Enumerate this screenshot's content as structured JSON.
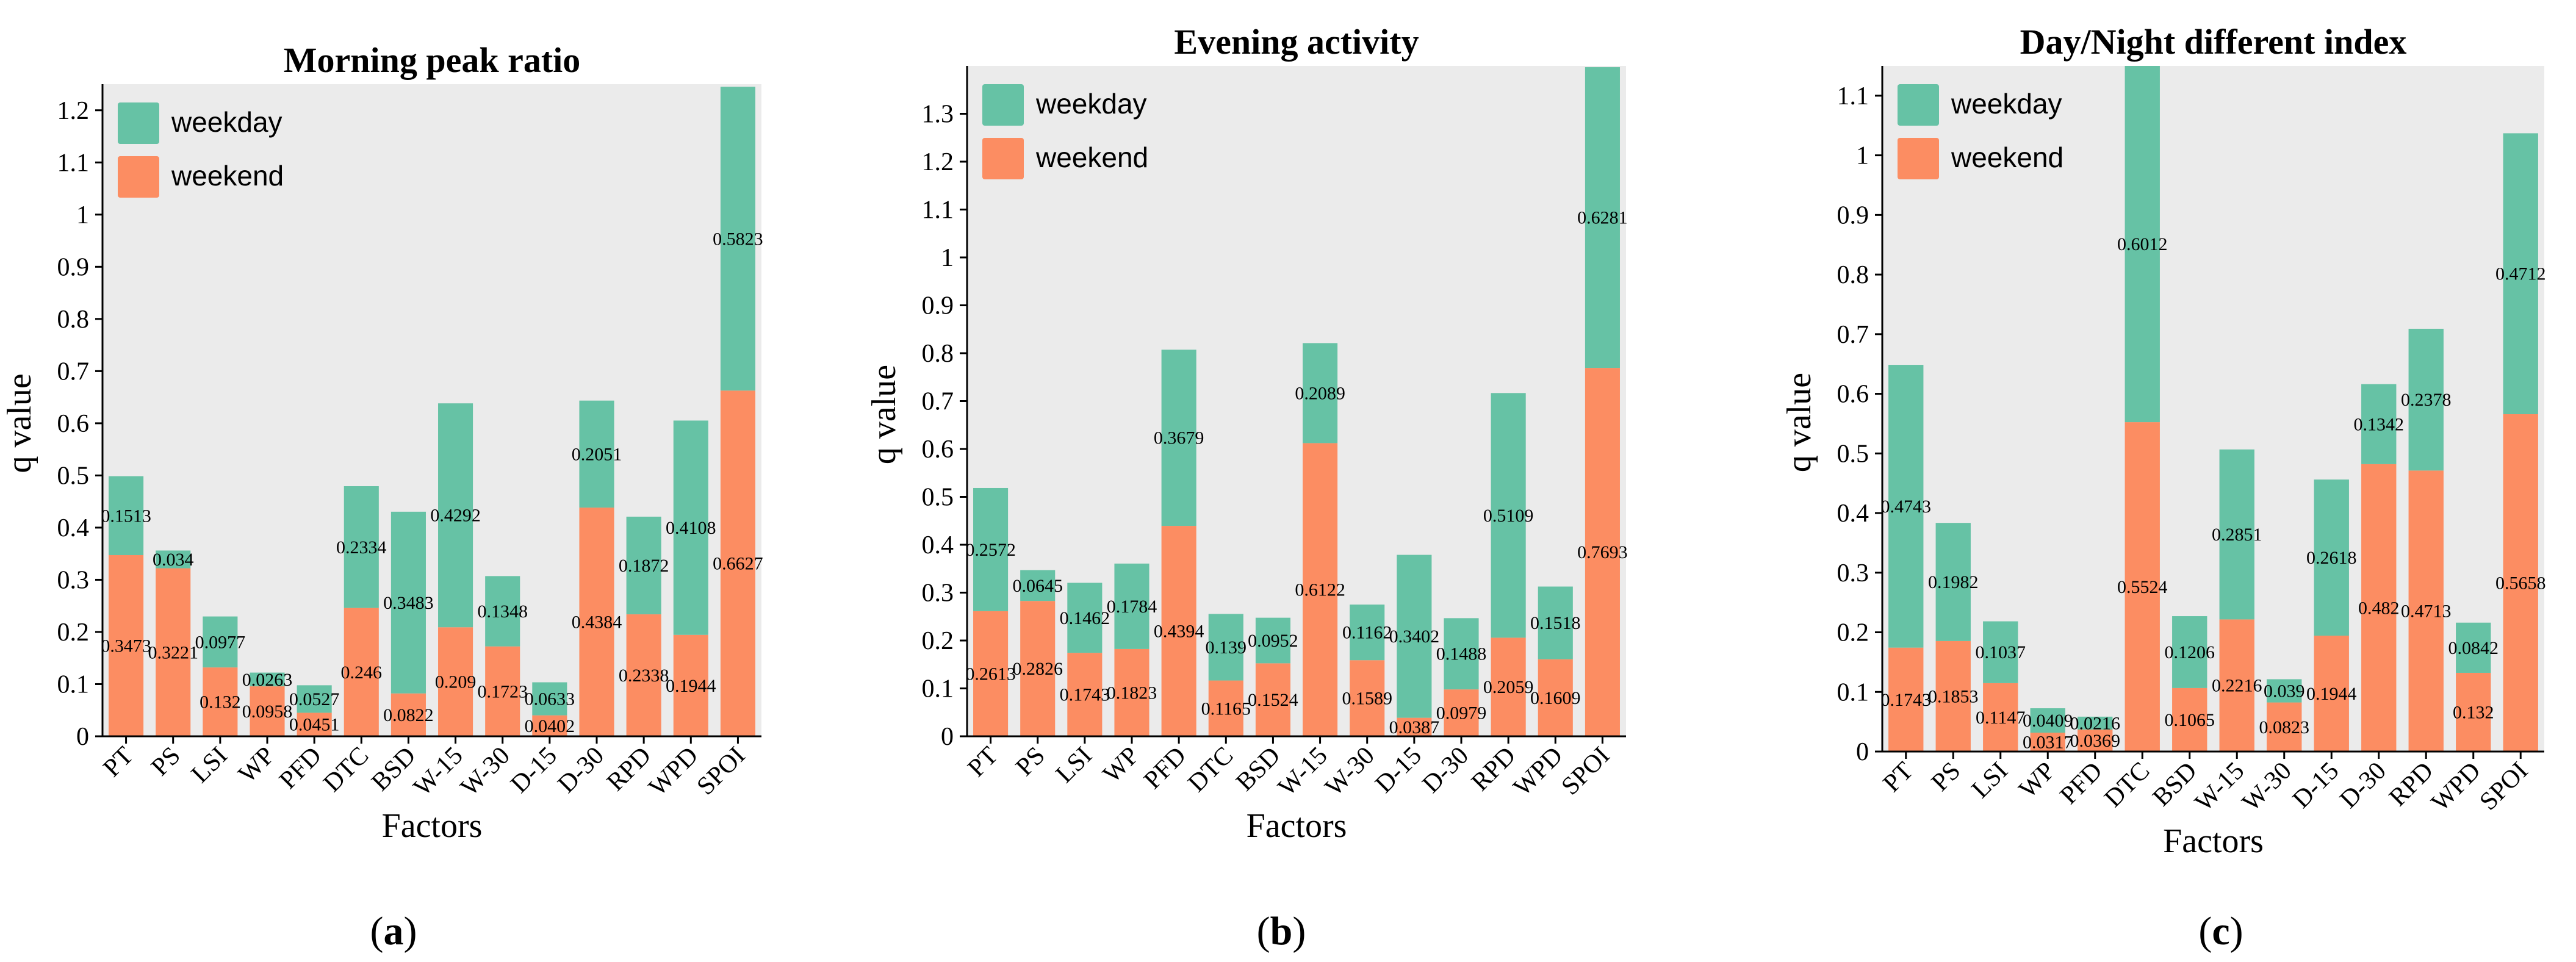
{
  "colors": {
    "weekday": "#66c2a5",
    "weekend": "#fc8d62",
    "background": "#ebebeb"
  },
  "chart_data": [
    {
      "type": "bar",
      "stacked": true,
      "title": "Morning peak ratio",
      "xlabel": "Factors",
      "ylabel": "q value",
      "panel_label": "a",
      "ylim": [
        0,
        1.25
      ],
      "yticks": [
        0,
        0.1,
        0.2,
        0.3,
        0.4,
        0.5,
        0.6,
        0.7,
        0.8,
        0.9,
        1,
        1.1,
        1.2
      ],
      "ytick_labels": [
        "0",
        "0.1",
        "0.2",
        "0.3",
        "0.4",
        "0.5",
        "0.6",
        "0.7",
        "0.8",
        "0.9",
        "1",
        "1.1",
        "1.2"
      ],
      "grid": false,
      "legend": "top-left",
      "categories": [
        "PT",
        "PS",
        "LSI",
        "WP",
        "PFD",
        "DTC",
        "BSD",
        "W-15",
        "W-30",
        "D-15",
        "D-30",
        "RPD",
        "WPD",
        "SPOI"
      ],
      "series": [
        {
          "name": "weekend",
          "values": [
            0.3473,
            0.3221,
            0.132,
            0.0958,
            0.0451,
            0.246,
            0.0822,
            0.209,
            0.1723,
            0.0402,
            0.4384,
            0.2338,
            0.1944,
            0.6627
          ],
          "labels": [
            "0.3473",
            "0.3221",
            "0.132",
            "0.0958",
            "0.0451",
            "0.246",
            "0.0822",
            "0.209",
            "0.1723",
            "0.0402",
            "0.4384",
            "0.2338",
            "0.1944",
            "0.6627"
          ]
        },
        {
          "name": "weekday",
          "values": [
            0.1513,
            0.034,
            0.0977,
            0.0263,
            0.0527,
            0.2334,
            0.3483,
            0.4292,
            0.1348,
            0.0633,
            0.2051,
            0.1872,
            0.4108,
            0.5823
          ],
          "labels": [
            "0.1513",
            "0.034",
            "0.0977",
            "0.0263",
            "0.0527",
            "0.2334",
            "0.3483",
            "0.4292",
            "0.1348",
            "0.0633",
            "0.2051",
            "0.1872",
            "0.4108",
            "0.5823"
          ]
        }
      ]
    },
    {
      "type": "bar",
      "stacked": true,
      "title": "Evening activity",
      "xlabel": "Factors",
      "ylabel": "q value",
      "panel_label": "b",
      "ylim": [
        0,
        1.4
      ],
      "yticks": [
        0,
        0.1,
        0.2,
        0.3,
        0.4,
        0.5,
        0.6,
        0.7,
        0.8,
        0.9,
        1,
        1.1,
        1.2,
        1.3
      ],
      "ytick_labels": [
        "0",
        "0.1",
        "0.2",
        "0.3",
        "0.4",
        "0.5",
        "0.6",
        "0.7",
        "0.8",
        "0.9",
        "1",
        "1.1",
        "1.2",
        "1.3"
      ],
      "grid": false,
      "legend": "top-left",
      "categories": [
        "PT",
        "PS",
        "LSI",
        "WP",
        "PFD",
        "DTC",
        "BSD",
        "W-15",
        "W-30",
        "D-15",
        "D-30",
        "RPD",
        "WPD",
        "SPOI"
      ],
      "series": [
        {
          "name": "weekend",
          "values": [
            0.2613,
            0.2826,
            0.1743,
            0.1823,
            0.4394,
            0.1165,
            0.1524,
            0.6122,
            0.1589,
            0.0387,
            0.0979,
            0.2059,
            0.1609,
            0.7693
          ],
          "labels": [
            "0.2613",
            "0.2826",
            "0.1743",
            "0.1823",
            "0.4394",
            "0.1165",
            "0.1524",
            "0.6122",
            "0.1589",
            "0.0387",
            "0.0979",
            "0.2059",
            "0.1609",
            "0.7693"
          ]
        },
        {
          "name": "weekday",
          "values": [
            0.2572,
            0.0645,
            0.1462,
            0.1784,
            0.3679,
            0.139,
            0.0952,
            0.2089,
            0.1162,
            0.3402,
            0.1488,
            0.5109,
            0.1518,
            0.6281
          ],
          "labels": [
            "0.2572",
            "0.0645",
            "0.1462",
            "0.1784",
            "0.3679",
            "0.139",
            "0.0952",
            "0.2089",
            "0.1162",
            "0.3402",
            "0.1488",
            "0.5109",
            "0.1518",
            "0.6281"
          ]
        }
      ]
    },
    {
      "type": "bar",
      "stacked": true,
      "title": "Day/Night different index",
      "xlabel": "Factors",
      "ylabel": "q value",
      "panel_label": "c",
      "ylim": [
        0,
        1.15
      ],
      "yticks": [
        0,
        0.1,
        0.2,
        0.3,
        0.4,
        0.5,
        0.6,
        0.7,
        0.8,
        0.9,
        1,
        1.1
      ],
      "ytick_labels": [
        "0",
        "0.1",
        "0.2",
        "0.3",
        "0.4",
        "0.5",
        "0.6",
        "0.7",
        "0.8",
        "0.9",
        "1",
        "1.1"
      ],
      "grid": false,
      "legend": "top-left",
      "categories": [
        "PT",
        "PS",
        "LSI",
        "WP",
        "PFD",
        "DTC",
        "BSD",
        "W-15",
        "W-30",
        "D-15",
        "D-30",
        "RPD",
        "WPD",
        "SPOI"
      ],
      "series": [
        {
          "name": "weekend",
          "values": [
            0.1743,
            0.1853,
            0.1147,
            0.0317,
            0.0369,
            0.5524,
            0.1065,
            0.2216,
            0.0823,
            0.1944,
            0.482,
            0.4713,
            0.132,
            0.5658
          ],
          "labels": [
            "0.1743",
            "0.1853",
            "0.1147",
            "0.0317",
            "0.0369",
            "0.5524",
            "0.1065",
            "0.2216",
            "0.0823",
            "0.1944",
            "0.482",
            "0.4713",
            "0.132",
            "0.5658"
          ]
        },
        {
          "name": "weekday",
          "values": [
            0.4743,
            0.1982,
            0.1037,
            0.0409,
            0.0216,
            0.6012,
            0.1206,
            0.2851,
            0.039,
            0.2618,
            0.1342,
            0.2378,
            0.0842,
            0.4712
          ],
          "labels": [
            "0.4743",
            "0.1982",
            "0.1037",
            "0.0409",
            "0.0216",
            "0.6012",
            "0.1206",
            "0.2851",
            "0.039",
            "0.2618",
            "0.1342",
            "0.2378",
            "0.0842",
            "0.4712"
          ]
        }
      ]
    }
  ]
}
